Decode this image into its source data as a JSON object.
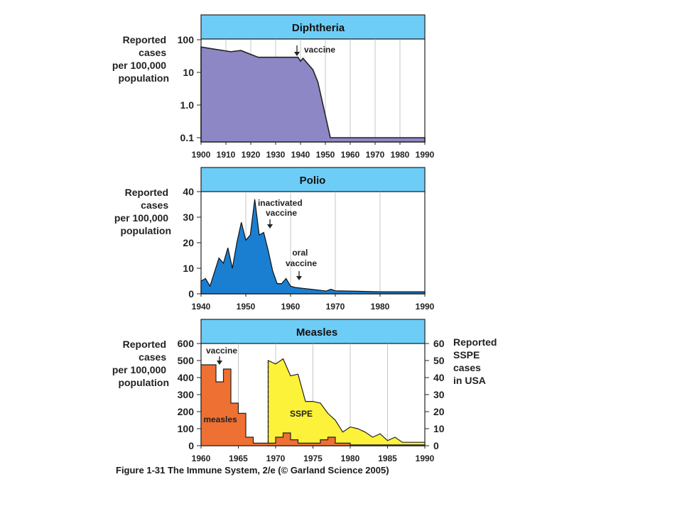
{
  "caption": "Figure 1-31 The Immune System, 2/e (© Garland Science 2005)",
  "chart_data": [
    {
      "type": "area",
      "title": "Diphtheria",
      "ylabel": "Reported cases per 100,000 population",
      "y_scale": "log",
      "ylim": [
        0.1,
        100
      ],
      "y_ticks": [
        "100",
        "10",
        "1.0",
        "0.1"
      ],
      "xlim": [
        1900,
        1990
      ],
      "x_ticks": [
        "1900",
        "1910",
        "1920",
        "1930",
        "1940",
        "1950",
        "1960",
        "1970",
        "1980",
        "1990"
      ],
      "fill_color": "#8e87c5",
      "series": [
        {
          "x": [
            1900,
            1905,
            1912,
            1916,
            1923,
            1930,
            1939,
            1940,
            1941,
            1945,
            1947,
            1952,
            1953,
            1990
          ],
          "values": [
            60,
            52,
            43,
            47,
            29,
            29,
            29,
            22,
            27,
            12,
            5,
            0.1,
            0.1,
            0.1
          ]
        }
      ],
      "annotations": [
        {
          "text": "vaccine",
          "x": 1939
        }
      ]
    },
    {
      "type": "area",
      "title": "Polio",
      "ylabel": "Reported cases per 100,000 population",
      "ylim": [
        0,
        40
      ],
      "y_ticks": [
        "40",
        "30",
        "20",
        "10",
        "0"
      ],
      "xlim": [
        1940,
        1990
      ],
      "x_ticks": [
        "1940",
        "1950",
        "1960",
        "1970",
        "1980",
        "1990"
      ],
      "fill_color": "#1a7fd0",
      "series": [
        {
          "x": [
            1940,
            1941,
            1942,
            1944,
            1945,
            1946,
            1947,
            1948,
            1949,
            1950,
            1951,
            1952,
            1953,
            1954,
            1955,
            1956,
            1957,
            1958,
            1959,
            1960,
            1961,
            1962,
            1963,
            1965,
            1968,
            1969,
            1970,
            1975,
            1980,
            1990
          ],
          "values": [
            5,
            6,
            3,
            14,
            12,
            18,
            10,
            20,
            28,
            21,
            23,
            37,
            23,
            24,
            17,
            9,
            4,
            4,
            6,
            3,
            2.5,
            2.3,
            2.1,
            1.7,
            1.1,
            1.8,
            1.2,
            1.0,
            0.8,
            0.8
          ]
        }
      ],
      "annotations": [
        {
          "text": "inactivated vaccine",
          "x": 1955
        },
        {
          "text": "oral vaccine",
          "x": 1961
        }
      ]
    },
    {
      "type": "area",
      "title": "Measles",
      "ylabel": "Reported cases per 100,000 population",
      "ylabel_right": "Reported SSPE cases in USA",
      "ylim": [
        0,
        600
      ],
      "ylim_right": [
        0,
        60
      ],
      "y_ticks": [
        "600",
        "500",
        "400",
        "300",
        "200",
        "100",
        "0"
      ],
      "y_ticks_right": [
        "60",
        "50",
        "40",
        "30",
        "20",
        "10",
        "0"
      ],
      "xlim": [
        1960,
        1990
      ],
      "x_ticks": [
        "1960",
        "1965",
        "1970",
        "1975",
        "1980",
        "1985",
        "1990"
      ],
      "series": [
        {
          "name": "measles",
          "axis": "left",
          "color": "#ee7033",
          "x": [
            1960,
            1962,
            1963,
            1964,
            1965,
            1966,
            1967,
            1968,
            1969,
            1970,
            1971,
            1972,
            1973,
            1974,
            1975,
            1976,
            1977,
            1978,
            1979,
            1980,
            1981,
            1990
          ],
          "values": [
            475,
            375,
            450,
            250,
            190,
            50,
            15,
            15,
            15,
            50,
            75,
            35,
            15,
            15,
            15,
            35,
            50,
            15,
            15,
            5,
            5,
            5
          ]
        },
        {
          "name": "SSPE",
          "axis": "right",
          "color": "#fcf23a",
          "x": [
            1969,
            1970,
            1971,
            1972,
            1973,
            1974,
            1975,
            1976,
            1977,
            1978,
            1979,
            1980,
            1981,
            1982,
            1983,
            1984,
            1985,
            1986,
            1987,
            1988,
            1989,
            1990
          ],
          "values": [
            50,
            48,
            51,
            41,
            42,
            26,
            26,
            25,
            19,
            15,
            8,
            11,
            10,
            8,
            5,
            7,
            3,
            5,
            2,
            2,
            2,
            2
          ]
        }
      ],
      "annotations": [
        {
          "text": "vaccine",
          "x": 1962.5
        }
      ]
    }
  ]
}
